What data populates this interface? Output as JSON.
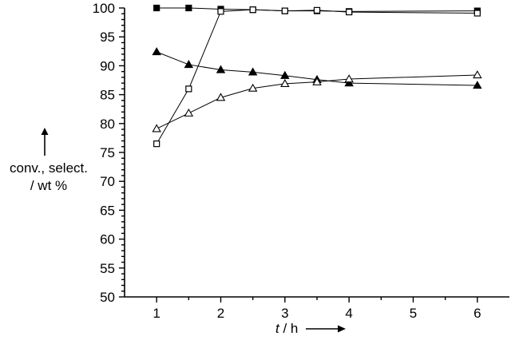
{
  "chart_data": {
    "type": "line",
    "title": "",
    "xlabel_var": "t",
    "xlabel_unit": "/ h",
    "ylabel_line1": "conv., select.",
    "ylabel_line2": "/ wt %",
    "xlim": [
      0.5,
      6.5
    ],
    "ylim": [
      50,
      100
    ],
    "x_ticks": [
      1,
      2,
      3,
      4,
      5,
      6
    ],
    "y_ticks": [
      50,
      55,
      60,
      65,
      70,
      75,
      80,
      85,
      90,
      95,
      100
    ],
    "y_minor_step": 1,
    "x_minor_step": 0.5,
    "grid": false,
    "legend": "none",
    "series": [
      {
        "marker": "square-filled",
        "x": [
          1,
          1.5,
          2,
          2.5,
          3,
          3.5,
          4,
          6
        ],
        "y": [
          100,
          100,
          99.8,
          99.7,
          99.5,
          99.5,
          99.4,
          99.5
        ]
      },
      {
        "marker": "square-open",
        "x": [
          1,
          1.5,
          2,
          2.5,
          3,
          3.5,
          4,
          6
        ],
        "y": [
          76.5,
          86,
          99.4,
          99.7,
          99.5,
          99.6,
          99.3,
          99.1
        ]
      },
      {
        "marker": "triangle-filled",
        "x": [
          1,
          1.5,
          2,
          2.5,
          3,
          3.5,
          4,
          6
        ],
        "y": [
          92.4,
          90.2,
          89.3,
          88.9,
          88.3,
          87.6,
          87.0,
          86.6
        ]
      },
      {
        "marker": "triangle-open",
        "x": [
          1,
          1.5,
          2,
          2.5,
          3,
          3.5,
          4,
          6
        ],
        "y": [
          79.1,
          81.8,
          84.5,
          86.1,
          86.9,
          87.2,
          87.7,
          88.4
        ]
      }
    ]
  }
}
